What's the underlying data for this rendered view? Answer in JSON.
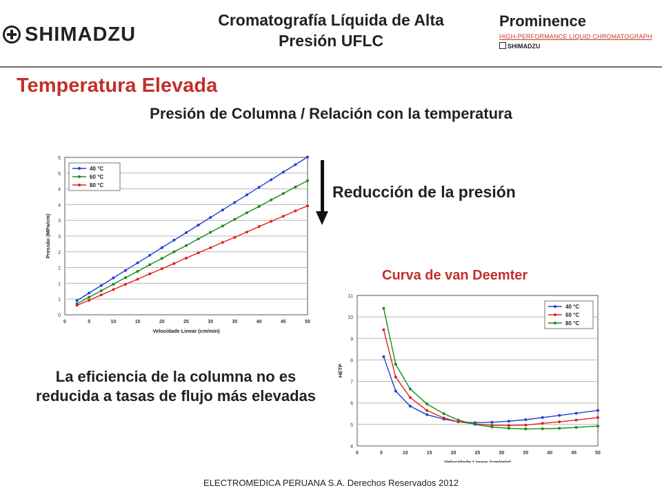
{
  "header": {
    "logo_text": "SHIMADZU",
    "title_line1": "Cromatografía Líquida de Alta",
    "title_line2": "Presión UFLC",
    "brand_name": "Prominence",
    "brand_tagline": "HIGH-PERFORMANCE LIQUID CHROMATOGRAPH",
    "brand_logo": "SHIMADZU"
  },
  "section_title": "Temperatura Elevada",
  "subtitle": "Presión de Columna / Relación con la temperatura",
  "reduction_label": "Reducción de la presión",
  "van_deemter_title": "Curva de van Deemter",
  "efficiency_text": "La eficiencia de la columna no es reducida a tasas de flujo más elevadas",
  "footer": "ELECTROMEDICA PERUANA S.A.   Derechos Reservados   2012",
  "colors": {
    "accent_red": "#c0302b",
    "series_blue": "#1f3fd6",
    "series_green": "#1a8a1a",
    "series_red": "#e0221c"
  },
  "chart_data": [
    {
      "type": "line",
      "xlabel": "Velocidade Linear (cm/min)",
      "ylabel": "Pressão (MPa/cm)",
      "xlim": [
        0,
        50
      ],
      "ylim": [
        0,
        5
      ],
      "xticks": [
        "0",
        "5",
        "10",
        "15",
        "20",
        "25",
        "30",
        "35",
        "40",
        "45",
        "50"
      ],
      "yticks": [
        "0",
        "1",
        "1",
        "2",
        "2",
        "3",
        "3",
        "4",
        "4",
        "5",
        "5"
      ],
      "grid": true,
      "legend": "top-left",
      "x": [
        2.5,
        5,
        7.5,
        10,
        12.5,
        15,
        17.5,
        20,
        22.5,
        25,
        27.5,
        30,
        32.5,
        35,
        37.5,
        40,
        42.5,
        45,
        47.5,
        50
      ],
      "series": [
        {
          "name": "40 °C",
          "color": "#1f3fd6",
          "values": [
            0.45,
            0.69,
            0.93,
            1.17,
            1.41,
            1.65,
            1.89,
            2.13,
            2.37,
            2.61,
            2.85,
            3.09,
            3.33,
            3.57,
            3.81,
            4.05,
            4.29,
            4.53,
            4.77,
            5.01
          ]
        },
        {
          "name": "60 °C",
          "color": "#1a8a1a",
          "values": [
            0.35,
            0.56,
            0.76,
            0.97,
            1.18,
            1.38,
            1.59,
            1.79,
            2.0,
            2.2,
            2.41,
            2.62,
            2.82,
            3.03,
            3.24,
            3.44,
            3.65,
            3.85,
            4.06,
            4.26
          ]
        },
        {
          "name": "80 °C",
          "color": "#e0221c",
          "values": [
            0.3,
            0.46,
            0.63,
            0.8,
            0.97,
            1.13,
            1.3,
            1.46,
            1.63,
            1.8,
            1.97,
            2.13,
            2.3,
            2.46,
            2.63,
            2.8,
            2.97,
            3.13,
            3.3,
            3.46
          ]
        }
      ]
    },
    {
      "type": "line",
      "xlabel": "Velocidade Linear (cm/min)",
      "ylabel": "HETP",
      "xlim": [
        0,
        50
      ],
      "ylim": [
        4,
        11
      ],
      "xticks": [
        "0",
        "5",
        "10",
        "15",
        "20",
        "25",
        "30",
        "35",
        "40",
        "45",
        "50"
      ],
      "yticks": [
        "4",
        "5",
        "6",
        "7",
        "8",
        "9",
        "10",
        "11"
      ],
      "grid": true,
      "legend": "top-right",
      "series": [
        {
          "name": "40 °C",
          "color": "#1f3fd6",
          "x": [
            5.5,
            8,
            11,
            14.5,
            18,
            21,
            24.5,
            28,
            31.5,
            35,
            38.5,
            42,
            45.5,
            50
          ],
          "values": [
            8.15,
            6.55,
            5.85,
            5.45,
            5.25,
            5.12,
            5.08,
            5.1,
            5.15,
            5.22,
            5.32,
            5.42,
            5.52,
            5.65
          ]
        },
        {
          "name": "60 °C",
          "color": "#e0221c",
          "x": [
            5.5,
            8,
            11,
            14.5,
            18,
            21,
            24.5,
            28,
            31.5,
            35,
            38.5,
            42,
            45.5,
            50
          ],
          "values": [
            9.4,
            7.2,
            6.25,
            5.65,
            5.3,
            5.12,
            5.02,
            4.96,
            4.95,
            4.97,
            5.05,
            5.12,
            5.2,
            5.32
          ]
        },
        {
          "name": "80 °C",
          "color": "#1a8a1a",
          "x": [
            5.5,
            8,
            11,
            14.5,
            18,
            21,
            24.5,
            28,
            31.5,
            35,
            38.5,
            42,
            45.5,
            50
          ],
          "values": [
            10.4,
            7.8,
            6.65,
            5.95,
            5.5,
            5.2,
            5.0,
            4.88,
            4.82,
            4.79,
            4.8,
            4.82,
            4.86,
            4.92
          ]
        }
      ]
    }
  ]
}
